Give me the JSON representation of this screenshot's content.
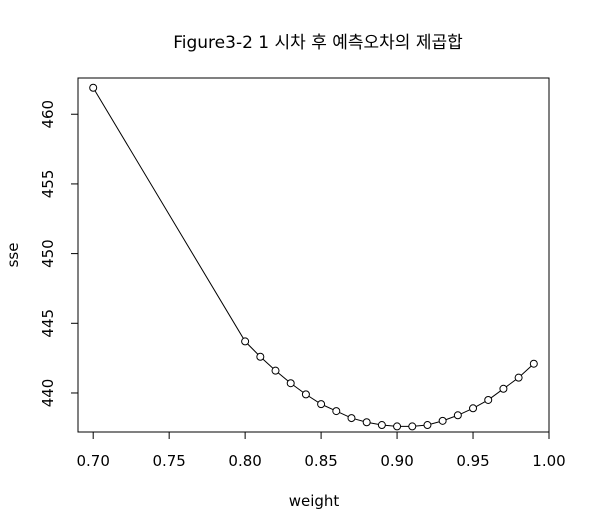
{
  "chart_data": {
    "type": "line",
    "title": "Figure3-2 1 시차 후 예측오차의 제곱합",
    "xlabel": "weight",
    "ylabel": "sse",
    "xlim": [
      0.69,
      1.0
    ],
    "ylim": [
      437.2,
      462.6
    ],
    "xticks": [
      0.7,
      0.75,
      0.8,
      0.85,
      0.9,
      0.95,
      1.0
    ],
    "xtick_labels": [
      "0.70",
      "0.75",
      "0.80",
      "0.85",
      "0.90",
      "0.95",
      "1.00"
    ],
    "yticks": [
      440,
      445,
      450,
      455,
      460
    ],
    "ytick_labels": [
      "440",
      "445",
      "450",
      "455",
      "460"
    ],
    "grid": false,
    "series": [
      {
        "x": [
          0.7,
          0.8,
          0.81,
          0.82,
          0.83,
          0.84,
          0.85,
          0.86,
          0.87,
          0.88,
          0.89,
          0.9,
          0.91,
          0.92,
          0.93,
          0.94,
          0.95,
          0.96,
          0.97,
          0.98,
          0.99
        ],
        "y": [
          461.9,
          443.7,
          442.6,
          441.6,
          440.7,
          439.9,
          439.2,
          438.7,
          438.2,
          437.9,
          437.7,
          437.6,
          437.6,
          437.7,
          438.0,
          438.4,
          438.9,
          439.5,
          440.3,
          441.1,
          442.1
        ]
      }
    ]
  }
}
